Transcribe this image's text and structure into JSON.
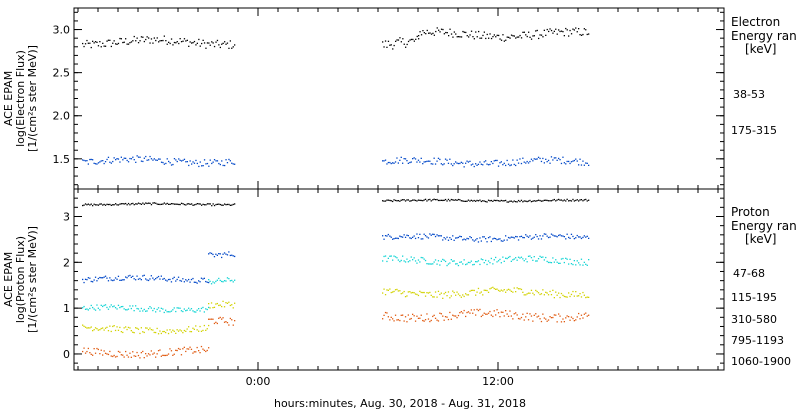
{
  "chart_data": [
    {
      "type": "scatter",
      "panel": "electron",
      "ylabel_lines": [
        "ACE EPAM",
        "log(Electron Flux)",
        "[1/(cm²s ster MeV)]"
      ],
      "ylim": [
        1.15,
        3.25
      ],
      "yticks": [
        "1.5",
        "2.0",
        "2.5",
        "3.0"
      ],
      "ytick_values": [
        1.5,
        2.0,
        2.5,
        3.0
      ],
      "legend_title_lines": [
        "Electron",
        "Energy ran",
        "[keV]"
      ],
      "series": [
        {
          "name": "38-53",
          "color": "#000000",
          "segments": [
            {
              "x_start": -8.8,
              "x_end": -1.2,
              "mean": 2.86,
              "jitter": 0.05
            },
            {
              "x_start": 6.2,
              "x_end": 8.0,
              "mean": 2.85,
              "jitter": 0.06
            },
            {
              "x_start": 8.0,
              "x_end": 16.5,
              "mean": 2.95,
              "jitter": 0.05
            }
          ]
        },
        {
          "name": "175-315",
          "color": "#0047c8",
          "segments": [
            {
              "x_start": -8.8,
              "x_end": -1.2,
              "mean": 1.48,
              "jitter": 0.04
            },
            {
              "x_start": 6.2,
              "x_end": 16.5,
              "mean": 1.47,
              "jitter": 0.04
            }
          ]
        }
      ]
    },
    {
      "type": "scatter",
      "panel": "proton",
      "ylabel_lines": [
        "ACE EPAM",
        "log(Proton Flux)",
        "[1/(cm²s ster MeV)]"
      ],
      "ylim": [
        -0.35,
        3.6
      ],
      "yticks": [
        "0",
        "1",
        "2",
        "3"
      ],
      "ytick_values": [
        0,
        1,
        2,
        3
      ],
      "legend_title_lines": [
        "Proton",
        "Energy ran",
        "[keV]"
      ],
      "series": [
        {
          "name": "47-68",
          "color": "#000000",
          "segments": [
            {
              "x_start": -8.8,
              "x_end": -1.2,
              "mean": 3.28,
              "jitter": 0.02
            },
            {
              "x_start": 6.2,
              "x_end": 16.5,
              "mean": 3.36,
              "jitter": 0.02
            }
          ]
        },
        {
          "name": "115-195",
          "color": "#0047c8",
          "segments": [
            {
              "x_start": -8.8,
              "x_end": -2.5,
              "mean": 1.65,
              "jitter": 0.06
            },
            {
              "x_start": -2.5,
              "x_end": -1.2,
              "mean": 2.2,
              "jitter": 0.06
            },
            {
              "x_start": 6.2,
              "x_end": 16.5,
              "mean": 2.55,
              "jitter": 0.06
            }
          ]
        },
        {
          "name": "310-580",
          "color": "#11d4d4",
          "segments": [
            {
              "x_start": -8.8,
              "x_end": -2.5,
              "mean": 1.0,
              "jitter": 0.06
            },
            {
              "x_start": -2.5,
              "x_end": -1.2,
              "mean": 1.6,
              "jitter": 0.06
            },
            {
              "x_start": 6.2,
              "x_end": 16.5,
              "mean": 2.05,
              "jitter": 0.07
            }
          ]
        },
        {
          "name": "795-1193",
          "color": "#d2d200",
          "segments": [
            {
              "x_start": -8.8,
              "x_end": -2.5,
              "mean": 0.55,
              "jitter": 0.07
            },
            {
              "x_start": -2.5,
              "x_end": -1.2,
              "mean": 1.05,
              "jitter": 0.07
            },
            {
              "x_start": 6.2,
              "x_end": 16.5,
              "mean": 1.35,
              "jitter": 0.08
            }
          ]
        },
        {
          "name": "1060-1900",
          "color": "#e05a10",
          "segments": [
            {
              "x_start": -8.8,
              "x_end": -2.5,
              "mean": 0.05,
              "jitter": 0.08
            },
            {
              "x_start": -2.5,
              "x_end": -1.2,
              "mean": 0.7,
              "jitter": 0.08
            },
            {
              "x_start": 6.2,
              "x_end": 16.5,
              "mean": 0.85,
              "jitter": 0.09
            }
          ]
        }
      ]
    }
  ],
  "xaxis": {
    "xlim": [
      -9.2,
      23.3
    ],
    "ticks": [
      {
        "value": 0,
        "label": "0:00"
      },
      {
        "value": 12,
        "label": "12:00"
      }
    ],
    "minor_step": 1,
    "xlabel": "hours:minutes, Aug. 30, 2018 - Aug. 31, 2018"
  }
}
